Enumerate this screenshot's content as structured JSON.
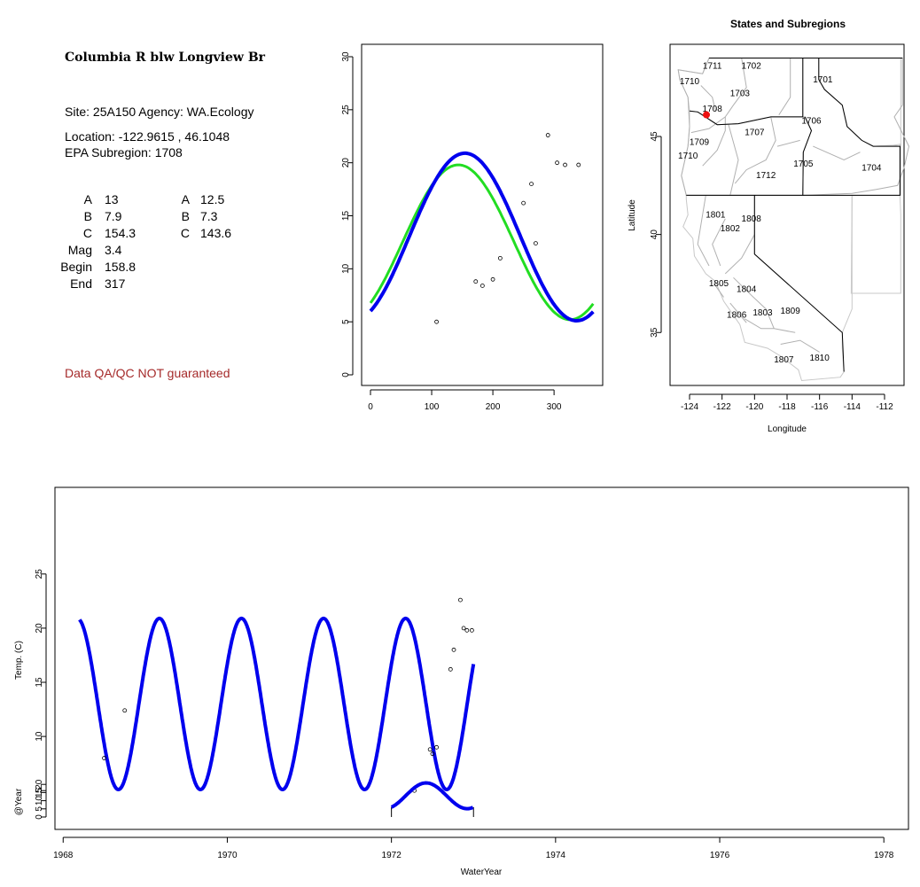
{
  "site": {
    "name": "Columbia R blw Longview Br",
    "site_line": "Site: 25A150     Agency: WA.Ecology",
    "location": "Location: -122.9615 , 46.1048",
    "subregion": "EPA Subregion: 1708",
    "params_left": [
      {
        "label": "A",
        "value": "13"
      },
      {
        "label": "B",
        "value": "7.9"
      },
      {
        "label": "C",
        "value": "154.3"
      },
      {
        "label": "Mag",
        "value": "3.4"
      },
      {
        "label": "Begin",
        "value": "158.8"
      },
      {
        "label": "End",
        "value": "317"
      }
    ],
    "params_right": [
      {
        "label": "A",
        "value": "12.5"
      },
      {
        "label": "B",
        "value": "7.3"
      },
      {
        "label": "C",
        "value": "143.6"
      }
    ],
    "qa_note": "Data QA/QC NOT guaranteed"
  },
  "colors": {
    "fit_blue": "#0000ee",
    "fit_green": "#22dd22",
    "site_marker": "#ee1111",
    "qa_text": "#a52a2a"
  },
  "chart_data": [
    {
      "type": "scatter",
      "title": "",
      "xlabel": "",
      "ylabel": "",
      "xlim": [
        0,
        365
      ],
      "ylim": [
        0,
        30
      ],
      "xticks": [
        "0",
        "100",
        "200",
        "300"
      ],
      "yticks": [
        "0",
        "5",
        "10",
        "15",
        "20",
        "25",
        "30"
      ],
      "points": [
        [
          108,
          5.0
        ],
        [
          172,
          8.8
        ],
        [
          183,
          8.4
        ],
        [
          200,
          9.0
        ],
        [
          212,
          11.0
        ],
        [
          250,
          16.2
        ],
        [
          263,
          18.0
        ],
        [
          270,
          12.4
        ],
        [
          290,
          22.6
        ],
        [
          305,
          20.0
        ],
        [
          318,
          19.8
        ],
        [
          340,
          19.8
        ]
      ],
      "series": [
        {
          "name": "",
          "color": "#22dd22",
          "A": 12.5,
          "B": 7.3,
          "C": 143.6
        },
        {
          "name": "",
          "color": "#0000ee",
          "A": 13,
          "B": 7.9,
          "C": 154.3
        }
      ]
    },
    {
      "type": "map",
      "title": "States and Subregions",
      "xlabel": "Longitude",
      "ylabel": "Latitude",
      "xlim": [
        -125.2,
        -110.8
      ],
      "ylim": [
        32.3,
        49.7
      ],
      "xticks": [
        "-124",
        "-122",
        "-120",
        "-118",
        "-116",
        "-114",
        "-112"
      ],
      "yticks": [
        "35",
        "40",
        "45"
      ],
      "site": {
        "lon": -122.9615,
        "lat": 46.1048
      },
      "region_labels": [
        {
          "text": "1711",
          "lon": -122.6,
          "lat": 48.6
        },
        {
          "text": "1702",
          "lon": -120.2,
          "lat": 48.6
        },
        {
          "text": "1701",
          "lon": -115.8,
          "lat": 47.9
        },
        {
          "text": "1710",
          "lon": -124.0,
          "lat": 47.8
        },
        {
          "text": "1703",
          "lon": -120.9,
          "lat": 47.2
        },
        {
          "text": "1708",
          "lon": -122.6,
          "lat": 46.4
        },
        {
          "text": "1706",
          "lon": -116.5,
          "lat": 45.8
        },
        {
          "text": "1707",
          "lon": -120.0,
          "lat": 45.2
        },
        {
          "text": "1709",
          "lon": -123.4,
          "lat": 44.7
        },
        {
          "text": "1710",
          "lon": -124.1,
          "lat": 44.0
        },
        {
          "text": "1705",
          "lon": -117.0,
          "lat": 43.6
        },
        {
          "text": "1704",
          "lon": -112.8,
          "lat": 43.4
        },
        {
          "text": "1712",
          "lon": -119.3,
          "lat": 43.0
        },
        {
          "text": "1801",
          "lon": -122.4,
          "lat": 41.0
        },
        {
          "text": "1808",
          "lon": -120.2,
          "lat": 40.8
        },
        {
          "text": "1802",
          "lon": -121.5,
          "lat": 40.3
        },
        {
          "text": "1805",
          "lon": -122.2,
          "lat": 37.5
        },
        {
          "text": "1804",
          "lon": -120.5,
          "lat": 37.2
        },
        {
          "text": "1806",
          "lon": -121.1,
          "lat": 35.9
        },
        {
          "text": "1803",
          "lon": -119.5,
          "lat": 36.0
        },
        {
          "text": "1809",
          "lon": -117.8,
          "lat": 36.1
        },
        {
          "text": "1807",
          "lon": -118.2,
          "lat": 33.6
        },
        {
          "text": "1810",
          "lon": -116.0,
          "lat": 33.7
        }
      ]
    },
    {
      "type": "line",
      "title": "",
      "xlabel": "WaterYear",
      "ylabel": "Temp. (C)",
      "xlim": [
        1967.9,
        1978.3
      ],
      "ylim": [
        1.5,
        33
      ],
      "xticks": [
        "1968",
        "1970",
        "1972",
        "1974",
        "1976",
        "1978"
      ],
      "yticks": [
        "5",
        "10",
        "15",
        "20",
        "25"
      ],
      "fit": {
        "color": "#0000ee",
        "A": 13,
        "B": 7.9,
        "C": 154.3,
        "start": 1968.2,
        "end": 1973.0
      },
      "points": [
        [
          1968.5,
          8.0
        ],
        [
          1968.75,
          12.4
        ],
        [
          1972.28,
          5.0
        ],
        [
          1972.47,
          8.8
        ],
        [
          1972.5,
          8.4
        ],
        [
          1972.55,
          9.0
        ],
        [
          1972.72,
          16.2
        ],
        [
          1972.76,
          18.0
        ],
        [
          1972.84,
          22.6
        ],
        [
          1972.88,
          20.0
        ],
        [
          1972.92,
          19.8
        ],
        [
          1972.98,
          19.8
        ]
      ],
      "subplot": {
        "ylabel": "@Year",
        "yticks": [
          "0",
          "5",
          "10",
          "15",
          "20"
        ],
        "range": [
          1972.0,
          1973.0
        ]
      }
    }
  ]
}
